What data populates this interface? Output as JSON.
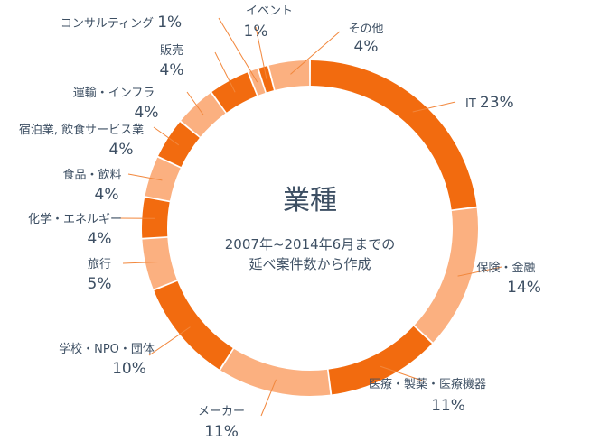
{
  "chart_data": {
    "type": "pie",
    "title": "業種",
    "subtitle_lines": [
      "2007年~2014年6月までの",
      "延べ案件数から作成"
    ],
    "unit": "%",
    "colors": {
      "dark": "#f26b0f",
      "light": "#fbb080",
      "leader": "#f2873c",
      "text": "#3d4f63"
    },
    "slices": [
      {
        "label": "IT",
        "value": 23,
        "value_label": "23%",
        "color": "#f26b0f"
      },
      {
        "label": "保険・金融",
        "value": 14,
        "value_label": "14%",
        "color": "#fbb080"
      },
      {
        "label": "医療・製薬・医療機器",
        "value": 11,
        "value_label": "11%",
        "color": "#f26b0f"
      },
      {
        "label": "メーカー",
        "value": 11,
        "value_label": "11%",
        "color": "#fbb080"
      },
      {
        "label": "学校・NPO・団体",
        "value": 10,
        "value_label": "10%",
        "color": "#f26b0f"
      },
      {
        "label": "旅行",
        "value": 5,
        "value_label": "5%",
        "color": "#fbb080"
      },
      {
        "label": "化学・エネルギー",
        "value": 4,
        "value_label": "4%",
        "color": "#f26b0f"
      },
      {
        "label": "食品・飲料",
        "value": 4,
        "value_label": "4%",
        "color": "#fbb080"
      },
      {
        "label": "宿泊業, 飲食サービス業",
        "value": 4,
        "value_label": "4%",
        "color": "#f26b0f"
      },
      {
        "label": "運輸・インフラ",
        "value": 4,
        "value_label": "4%",
        "color": "#fbb080"
      },
      {
        "label": "販売",
        "value": 4,
        "value_label": "4%",
        "color": "#f26b0f"
      },
      {
        "label": "コンサルティング",
        "value": 1,
        "value_label": "1%",
        "color": "#fbb080"
      },
      {
        "label": "イベント",
        "value": 1,
        "value_label": "1%",
        "color": "#f26b0f"
      },
      {
        "label": "その他",
        "value": 4,
        "value_label": "4%",
        "color": "#fbb080"
      }
    ]
  }
}
